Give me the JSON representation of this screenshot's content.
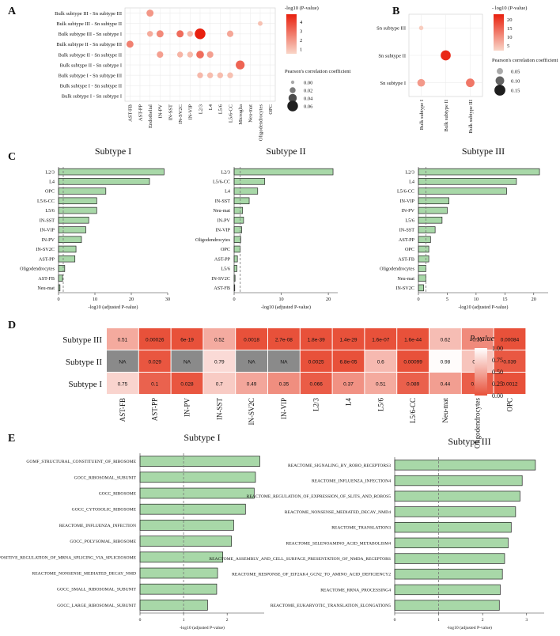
{
  "colors": {
    "bar_fill": "#a8d8a8",
    "bar_stroke": "#222222",
    "na_fill": "#8a8a8a",
    "dash": "#777777",
    "heat_low": "#e8513a",
    "heat_high": "#ffffff"
  },
  "panels": {
    "a": "A",
    "b": "B",
    "c": "C",
    "d": "D",
    "e": "E"
  },
  "chart_data": [
    {
      "id": "A",
      "type": "scatter",
      "rows": [
        "Bulk subtype III - Sn subtype III",
        "Bulk subtype III - Sn subtype II",
        "Bulk subtype III - Sn subtype I",
        "Bulk subtype II - Sn subtype III",
        "Bulk subtype II - Sn subtype II",
        "Bulk subtype II - Sn subtype I",
        "Bulk subtype I - Sn subtype III",
        "Bulk subtype I - Sn subtype II",
        "Bulk subtype I - Sn subtype I"
      ],
      "columns": [
        "AST-FB",
        "AST-PP",
        "Endothelial",
        "IN-PV",
        "IN-SST",
        "IN-SV2C",
        "IN-VIP",
        "L2/3",
        "L4",
        "L5/6",
        "L5/6-CC",
        "Microglia",
        "Neu-mat",
        "Oligodendrocytes",
        "OPC"
      ],
      "legend_color_title": "-log10 (P-value)",
      "legend_color_ticks": [
        "4",
        "3",
        "2",
        "1"
      ],
      "color_range": [
        0.5,
        4.8
      ],
      "legend_size_title": "Pearson's correlation coefficient",
      "legend_size_ticks": [
        "0.00",
        "0.02",
        "0.04",
        "0.06"
      ],
      "size_range": [
        0,
        0.07
      ],
      "points": [
        {
          "r": 0,
          "c": 2,
          "v": 2.0,
          "s": 0.03
        },
        {
          "r": 1,
          "c": 13,
          "v": 1.0,
          "s": 0.01
        },
        {
          "r": 2,
          "c": 2,
          "v": 1.5,
          "s": 0.02
        },
        {
          "r": 2,
          "c": 3,
          "v": 2.3,
          "s": 0.03
        },
        {
          "r": 2,
          "c": 5,
          "v": 3.0,
          "s": 0.03
        },
        {
          "r": 2,
          "c": 6,
          "v": 1.2,
          "s": 0.02
        },
        {
          "r": 2,
          "c": 7,
          "v": 4.8,
          "s": 0.06
        },
        {
          "r": 2,
          "c": 10,
          "v": 1.6,
          "s": 0.025
        },
        {
          "r": 3,
          "c": 0,
          "v": 2.5,
          "s": 0.03
        },
        {
          "r": 4,
          "c": 3,
          "v": 1.8,
          "s": 0.025
        },
        {
          "r": 4,
          "c": 5,
          "v": 1.3,
          "s": 0.02
        },
        {
          "r": 4,
          "c": 6,
          "v": 1.1,
          "s": 0.02
        },
        {
          "r": 4,
          "c": 7,
          "v": 3.0,
          "s": 0.035
        },
        {
          "r": 4,
          "c": 8,
          "v": 1.8,
          "s": 0.025
        },
        {
          "r": 5,
          "c": 11,
          "v": 3.2,
          "s": 0.045
        },
        {
          "r": 6,
          "c": 7,
          "v": 1.2,
          "s": 0.02
        },
        {
          "r": 6,
          "c": 8,
          "v": 1.1,
          "s": 0.02
        },
        {
          "r": 6,
          "c": 9,
          "v": 1.1,
          "s": 0.02
        },
        {
          "r": 6,
          "c": 10,
          "v": 1.0,
          "s": 0.02
        }
      ]
    },
    {
      "id": "B",
      "type": "scatter",
      "rows": [
        "Sn subtype III",
        "Sn subtype II",
        "Sn subtype I"
      ],
      "columns": [
        "Bulk subtype I",
        "Bulk subtype II",
        "Bulk subtype III"
      ],
      "legend_color_title": "- log10 (P-value)",
      "legend_color_ticks": [
        "20",
        "15",
        "10",
        "5"
      ],
      "color_range": [
        2,
        23
      ],
      "legend_size_title": "Pearson's correlation coefficient",
      "legend_size_ticks": [
        "0.05",
        "0.10",
        "0.15"
      ],
      "size_range": [
        0,
        0.17
      ],
      "points": [
        {
          "r": 0,
          "c": 0,
          "v": 3,
          "s": 0.01
        },
        {
          "r": 1,
          "c": 1,
          "v": 22,
          "s": 0.13
        },
        {
          "r": 2,
          "c": 0,
          "v": 9,
          "s": 0.08
        },
        {
          "r": 2,
          "c": 2,
          "v": 13,
          "s": 0.1
        }
      ]
    },
    {
      "id": "C1",
      "type": "bar",
      "orientation": "horizontal",
      "title": "Subtype I",
      "xlabel": "-log10 (adjusted P-value)",
      "xlim": [
        0,
        30
      ],
      "xticks": [
        0,
        10,
        20,
        30
      ],
      "threshold": 1.3,
      "categories": [
        "L2/3",
        "L4",
        "OPC",
        "L5/6-CC",
        "L5/6",
        "IN-SST",
        "IN-VIP",
        "IN-PV",
        "IN-SV2C",
        "AST-PP",
        "Oligodendrocytes",
        "AST-FB",
        "Neu-mat"
      ],
      "values": [
        29,
        25,
        13,
        10.5,
        10.5,
        8.3,
        7.5,
        6.3,
        4.8,
        4.5,
        1.7,
        1.1,
        0.4
      ]
    },
    {
      "id": "C2",
      "type": "bar",
      "orientation": "horizontal",
      "title": "Subtype II",
      "xlabel": "-log10 (adjusted P-value)",
      "xlim": [
        0,
        22
      ],
      "xticks": [
        0,
        10,
        20
      ],
      "threshold": 1.3,
      "categories": [
        "L2/3",
        "L5/6-CC",
        "L4",
        "IN-SST",
        "Neu-mat",
        "IN-PV",
        "IN-VIP",
        "Oligodendrocytes",
        "OPC",
        "AST-PP",
        "L5/6",
        "IN-SV2C",
        "AST-FB"
      ],
      "values": [
        21,
        6.5,
        5,
        3.2,
        1.8,
        2,
        1.6,
        1.4,
        1.3,
        0.7,
        0.6,
        0.2,
        0.1
      ]
    },
    {
      "id": "C3",
      "type": "bar",
      "orientation": "horizontal",
      "title": "Subtype III",
      "xlabel": "-log10 (adjusted P-value)",
      "xlim": [
        0,
        22.5
      ],
      "xticks": [
        0,
        5,
        10,
        15,
        20
      ],
      "threshold": 1.3,
      "categories": [
        "L2/3",
        "L4",
        "L5/6-CC",
        "IN-VIP",
        "IN-PV",
        "L5/6",
        "IN-SST",
        "AST-PP",
        "OPC",
        "AST-FB",
        "Oligodendrocytes",
        "Neu-mat",
        "IN-SV2C"
      ],
      "values": [
        21,
        17,
        15.3,
        5.3,
        5,
        4.1,
        2.9,
        2.1,
        1.8,
        1.8,
        1.3,
        1.3,
        0.9
      ]
    },
    {
      "id": "D",
      "type": "heatmap",
      "rows": [
        "Subtype III",
        "Subtype II",
        "Subtype I"
      ],
      "columns": [
        "AST-FB",
        "AST-PP",
        "IN-PV",
        "IN-SST",
        "IN-SV2C",
        "IN-VIP",
        "L2/3",
        "L4",
        "L5/6",
        "L5/6-CC",
        "Neu-mat",
        "Oligodendrocytes",
        "OPC"
      ],
      "cells": [
        [
          "0.51",
          "0.00026",
          "6e-19",
          "0.52",
          "0.0018",
          "2.7e-08",
          "1.8e-39",
          "1.4e-29",
          "1.6e-07",
          "1.6e-44",
          "0.62",
          "0.33",
          "0.00084"
        ],
        [
          "NA",
          "0.029",
          "NA",
          "0.79",
          "NA",
          "NA",
          "0.0025",
          "6.8e-05",
          "0.6",
          "0.00099",
          "0.98",
          "0.66",
          "0.039"
        ],
        [
          "0.75",
          "0.1",
          "0.028",
          "0.7",
          "0.49",
          "0.35",
          "0.066",
          "0.37",
          "0.51",
          "0.089",
          "0.44",
          "0.076",
          "0.0012"
        ]
      ],
      "legend_title": "P-value",
      "legend_ticks": [
        "1.00",
        "0.75",
        "0.50",
        "0.25",
        "0.00"
      ]
    },
    {
      "id": "E1",
      "type": "bar",
      "orientation": "horizontal",
      "title": "Subtype I",
      "xlabel": "-log10 (adjusted P-value)",
      "xlim": [
        0,
        2.85
      ],
      "xticks": [
        0,
        1,
        2
      ],
      "threshold": 1.0,
      "categories": [
        "GOMF_STRUCTURAL_CONSTITUENT_OF_RIBOSOME",
        "GOCC_RIBOSOMAL_SUBUNIT",
        "GOCC_RIBOSOME",
        "GOCC_CYTOSOLIC_RIBOSOME",
        "REACTOME_INFLUENZA_INFECTION",
        "GOCC_POLYSOMAL_RIBOSOME",
        "GOBP_POSITIVE_REGULATION_OF_MRNA_SPLICING_VIA_SPLICEOSOME",
        "REACTOME_NONSENSE_MEDIATED_DECAY_NMD",
        "GOCC_SMALL_RIBOSOMAL_SUBUNIT",
        "GOCC_LARGE_RIBOSOMAL_SUBUNIT"
      ],
      "values": [
        2.75,
        2.65,
        2.62,
        2.42,
        2.15,
        2.1,
        1.9,
        1.78,
        1.76,
        1.55
      ]
    },
    {
      "id": "E2",
      "type": "bar",
      "orientation": "horizontal",
      "title": "Subtype III",
      "xlabel": "-log10 (adjusted P-value)",
      "xlim": [
        0,
        3.4
      ],
      "xticks": [
        0,
        1,
        2,
        3
      ],
      "threshold": 1.0,
      "categories": [
        "REACTOME_SIGNALING_BY_ROBO_RECEPTORS3",
        "REACTOME_INFLUENZA_INFECTION4",
        "REACTOME_REGULATION_OF_EXPRESSION_OF_SLITS_AND_ROBOS5",
        "REACTOME_NONSENSE_MEDIATED_DECAY_NMD4",
        "REACTOME_TRANSLATION3",
        "REACTOME_SELENOAMINO_ACID_METABOLISM4",
        "REACTOME_ASSEMBLY_AND_CELL_SURFACE_PRESENTATION_OF_NMDA_RECEPTORS",
        "REACTOME_RESPONSE_OF_EIF2AK4_GCN2_TO_AMINO_ACID_DEFICIENCY2",
        "REACTOME_RRNA_PROCESSING4",
        "REACTOME_EUKARYOTIC_TRANSLATION_ELONGATION5"
      ],
      "values": [
        3.2,
        2.9,
        2.85,
        2.75,
        2.65,
        2.58,
        2.5,
        2.45,
        2.4,
        2.38
      ]
    }
  ]
}
